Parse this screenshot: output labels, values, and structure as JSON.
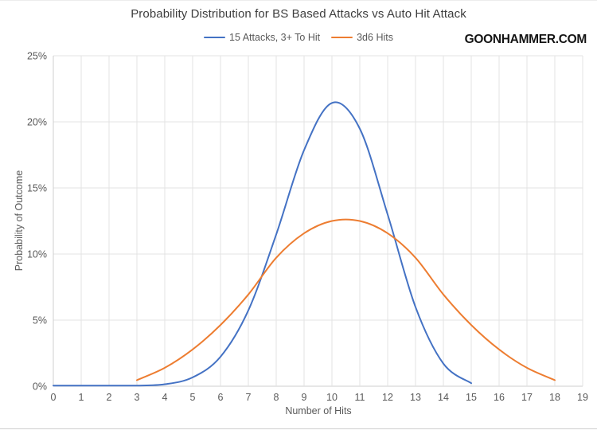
{
  "watermark": "GOONHAMMER.COM",
  "colors": {
    "series_blue": "#4472C4",
    "series_orange": "#ED7D31",
    "grid": "#e3e3e3",
    "axis": "#cfcfcf",
    "tick_text": "#595959",
    "title_text": "#3d3d3d",
    "watermark_text": "#141414"
  },
  "chart_data": {
    "type": "line",
    "title": "Probability Distribution for BS Based Attacks vs Auto Hit Attack",
    "xlabel": "Number of Hits",
    "ylabel": "Probability of Outcome",
    "xlim": [
      0,
      19
    ],
    "ylim": [
      0,
      25
    ],
    "x_ticks": [
      0,
      1,
      2,
      3,
      4,
      5,
      6,
      7,
      8,
      9,
      10,
      11,
      12,
      13,
      14,
      15,
      16,
      17,
      18,
      19
    ],
    "y_ticks": {
      "values": [
        0,
        5,
        10,
        15,
        20,
        25
      ],
      "labels": [
        "0%",
        "5%",
        "10%",
        "15%",
        "20%",
        "25%"
      ]
    },
    "grid": true,
    "legend_position": "top-center",
    "smooth": true,
    "series": [
      {
        "name": "15 Attacks, 3+ To Hit",
        "color": "#4472C4",
        "x": [
          0,
          1,
          2,
          3,
          4,
          5,
          6,
          7,
          8,
          9,
          10,
          11,
          12,
          13,
          14,
          15
        ],
        "y": [
          0,
          0.0002,
          0.003,
          0.025,
          0.15,
          0.67,
          2.23,
          5.74,
          11.48,
          17.86,
          21.43,
          19.48,
          12.99,
          5.99,
          1.71,
          0.23
        ]
      },
      {
        "name": "3d6 Hits",
        "color": "#ED7D31",
        "x": [
          3,
          4,
          5,
          6,
          7,
          8,
          9,
          10,
          11,
          12,
          13,
          14,
          15,
          16,
          17,
          18
        ],
        "y": [
          0.46,
          1.39,
          2.78,
          4.63,
          6.94,
          9.72,
          11.57,
          12.5,
          12.5,
          11.57,
          9.72,
          6.94,
          4.63,
          2.78,
          1.39,
          0.46
        ]
      }
    ]
  }
}
